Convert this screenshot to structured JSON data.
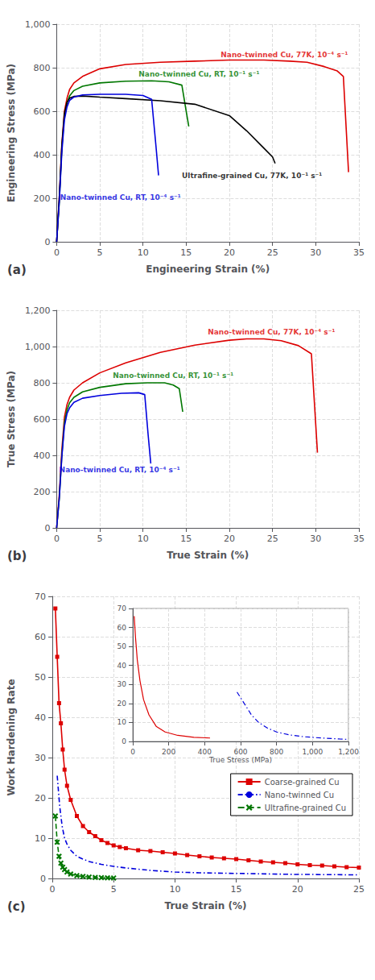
{
  "chart_data": [
    {
      "type": "line",
      "title": "(a)",
      "xlabel": "Engineering Strain (%)",
      "ylabel": "Engineering Stress (MPa)",
      "xlim": [
        0,
        35
      ],
      "ylim": [
        0,
        1000
      ],
      "xticks": [
        0,
        5,
        10,
        15,
        20,
        25,
        30,
        35
      ],
      "yticks": [
        0,
        200,
        400,
        600,
        800,
        1000
      ],
      "grid": true,
      "series": [
        {
          "color": "#dd0000",
          "line_style": "solid",
          "x": [
            0,
            0.3,
            0.6,
            0.9,
            1.2,
            1.5,
            2.0,
            3.0,
            5.0,
            8.0,
            12.0,
            16.0,
            20.0,
            24.0,
            27.0,
            29.0,
            31.0,
            32.5,
            33.2,
            33.8
          ],
          "values": [
            0,
            200,
            450,
            600,
            660,
            700,
            730,
            760,
            795,
            815,
            825,
            830,
            835,
            835,
            830,
            825,
            805,
            785,
            760,
            320
          ]
        },
        {
          "color": "#007700",
          "line_style": "solid",
          "x": [
            0,
            0.3,
            0.6,
            0.9,
            1.2,
            1.5,
            2.0,
            3.0,
            5.0,
            8.0,
            11.0,
            13.0,
            14.5,
            15.0,
            15.3
          ],
          "values": [
            0,
            180,
            430,
            580,
            640,
            670,
            695,
            715,
            730,
            738,
            740,
            735,
            720,
            600,
            530
          ]
        },
        {
          "color": "#000000",
          "line_style": "solid",
          "x": [
            0,
            0.3,
            0.6,
            0.9,
            1.2,
            1.5,
            2.0,
            3.0,
            5.0,
            8.0,
            12.0,
            16.0,
            20.0,
            22.0,
            24.0,
            25.0,
            25.3
          ],
          "values": [
            0,
            200,
            440,
            590,
            640,
            660,
            668,
            670,
            665,
            658,
            648,
            632,
            580,
            510,
            430,
            390,
            360
          ]
        },
        {
          "color": "#0000dd",
          "line_style": "solid",
          "x": [
            0,
            0.3,
            0.6,
            0.9,
            1.2,
            1.5,
            2.0,
            3.0,
            5.0,
            8.0,
            10.0,
            11.0,
            11.5,
            11.8
          ],
          "values": [
            0,
            180,
            410,
            560,
            620,
            650,
            665,
            675,
            678,
            678,
            672,
            655,
            440,
            305
          ]
        }
      ],
      "annotations": [
        {
          "x": 19.0,
          "y": 843,
          "text": "Nano-twinned Cu, 77K, 10⁻⁴ s⁻¹",
          "color": "#dd0000"
        },
        {
          "x": 9.5,
          "y": 752,
          "text": "Nano-twinned Cu, RT, 10⁻¹ s⁻¹",
          "color": "#007700"
        },
        {
          "x": 14.5,
          "y": 288,
          "text": "Ultrafine-grained Cu, 77K, 10⁻¹ s⁻¹",
          "color": "#000000"
        },
        {
          "x": 0.4,
          "y": 188,
          "text": "Nano-twinned Cu, RT, 10⁻⁴ s⁻¹",
          "color": "#0000dd"
        }
      ]
    },
    {
      "type": "line",
      "title": "(b)",
      "xlabel": "True Strain (%)",
      "ylabel": "True Stress (MPa)",
      "xlim": [
        0,
        35
      ],
      "ylim": [
        0,
        1200
      ],
      "xticks": [
        0,
        5,
        10,
        15,
        20,
        25,
        30,
        35
      ],
      "yticks": [
        0,
        200,
        400,
        600,
        800,
        1000,
        1200
      ],
      "grid": true,
      "series": [
        {
          "color": "#dd0000",
          "line_style": "solid",
          "x": [
            0,
            0.3,
            0.6,
            0.9,
            1.2,
            1.5,
            2.0,
            3.0,
            5.0,
            8.0,
            12.0,
            16.0,
            20.0,
            22.0,
            24.0,
            26.0,
            28.0,
            29.5,
            30.2
          ],
          "values": [
            0,
            180,
            430,
            610,
            680,
            720,
            760,
            800,
            855,
            910,
            968,
            1008,
            1035,
            1042,
            1042,
            1032,
            1005,
            960,
            415
          ]
        },
        {
          "color": "#007700",
          "line_style": "solid",
          "x": [
            0,
            0.3,
            0.6,
            0.9,
            1.2,
            1.5,
            2.0,
            3.0,
            5.0,
            8.0,
            10.5,
            12.5,
            13.5,
            14.2,
            14.6
          ],
          "values": [
            0,
            160,
            400,
            580,
            650,
            690,
            720,
            750,
            775,
            795,
            800,
            800,
            788,
            768,
            640
          ]
        },
        {
          "color": "#0000dd",
          "line_style": "solid",
          "x": [
            0,
            0.3,
            0.6,
            0.9,
            1.2,
            1.5,
            2.0,
            3.0,
            5.0,
            7.5,
            9.5,
            10.2,
            10.6,
            10.9
          ],
          "values": [
            0,
            160,
            390,
            560,
            630,
            662,
            692,
            715,
            730,
            742,
            745,
            735,
            510,
            355
          ]
        }
      ],
      "annotations": [
        {
          "x": 17.5,
          "y": 1062,
          "text": "Nano-twinned Cu, 77K, 10⁻⁴ s⁻¹",
          "color": "#dd0000"
        },
        {
          "x": 6.5,
          "y": 822,
          "text": "Nano-twinned Cu, RT, 10⁻¹ s⁻¹",
          "color": "#007700"
        },
        {
          "x": 0.3,
          "y": 298,
          "text": "Nano-twinned Cu, RT, 10⁻⁴ s⁻¹",
          "color": "#0000dd"
        }
      ]
    },
    {
      "type": "line",
      "title": "(c)",
      "xlabel": "True Strain (%)",
      "ylabel": "Work Hardening Rate",
      "xlim": [
        0,
        25
      ],
      "ylim": [
        0,
        70
      ],
      "xticks": [
        0,
        5,
        10,
        15,
        20,
        25
      ],
      "yticks": [
        0,
        10,
        20,
        30,
        40,
        50,
        60,
        70
      ],
      "grid": true,
      "legend": "lower right",
      "series": [
        {
          "name": "Coarse-grained Cu",
          "color": "#dd0000",
          "line_style": "solid",
          "marker": "square",
          "x": [
            0.25,
            0.4,
            0.55,
            0.7,
            0.85,
            1.0,
            1.2,
            1.5,
            2.0,
            2.5,
            3.0,
            3.5,
            4.0,
            4.5,
            5.0,
            5.5,
            6.0,
            7.0,
            8.0,
            9.0,
            10.0,
            11.0,
            12.0,
            13.0,
            14.0,
            15.0,
            16.0,
            17.0,
            18.0,
            19.0,
            20.0,
            21.0,
            22.0,
            23.0,
            24.0,
            25.0
          ],
          "values": [
            67.0,
            55.0,
            43.5,
            38.5,
            32.0,
            27.0,
            23.0,
            19.5,
            15.5,
            13.0,
            11.5,
            10.5,
            9.5,
            8.8,
            8.2,
            7.8,
            7.5,
            7.0,
            6.8,
            6.5,
            6.2,
            5.8,
            5.5,
            5.2,
            5.0,
            4.8,
            4.5,
            4.2,
            4.0,
            3.8,
            3.5,
            3.3,
            3.2,
            3.0,
            2.8,
            2.7
          ]
        },
        {
          "name": "Nano-twinned Cu",
          "color": "#0000dd",
          "line_style": "dashdot",
          "x": [
            0.4,
            0.6,
            0.8,
            1.0,
            1.2,
            1.5,
            2.0,
            2.5,
            3.0,
            4.0,
            5.0,
            6.0,
            7.0,
            8.0,
            9.0,
            10.0,
            11.0,
            12.0,
            13.0,
            14.0,
            15.0,
            16.0,
            17.0,
            18.0,
            19.0,
            20.0,
            21.0,
            22.0,
            23.0,
            24.0,
            25.0
          ],
          "values": [
            25.5,
            18.0,
            13.0,
            10.0,
            8.5,
            7.0,
            5.5,
            4.8,
            4.2,
            3.5,
            3.0,
            2.6,
            2.3,
            2.0,
            1.8,
            1.6,
            1.5,
            1.4,
            1.35,
            1.3,
            1.25,
            1.2,
            1.15,
            1.1,
            1.05,
            1.0,
            1.0,
            0.95,
            0.95,
            0.9,
            0.9
          ]
        },
        {
          "name": "Ultrafine-grained Cu",
          "color": "#007700",
          "line_style": "dashed",
          "marker": "x",
          "x": [
            0.25,
            0.4,
            0.55,
            0.7,
            0.85,
            1.0,
            1.2,
            1.5,
            2.0,
            2.5,
            3.0,
            3.5,
            4.0,
            4.5,
            5.0
          ],
          "values": [
            15.5,
            9.0,
            5.5,
            3.8,
            2.8,
            2.2,
            1.6,
            1.1,
            0.7,
            0.5,
            0.35,
            0.25,
            0.2,
            0.15,
            0.12
          ]
        }
      ]
    },
    {
      "type": "line",
      "xlabel": "True Stress (MPa)",
      "xlim": [
        0,
        1200
      ],
      "ylim": [
        0,
        70
      ],
      "xticks": [
        0,
        200,
        400,
        600,
        800,
        1000,
        1200
      ],
      "yticks": [
        0,
        10,
        20,
        30,
        40,
        50,
        60,
        70
      ],
      "grid": true,
      "series": [
        {
          "color": "#dd0000",
          "line_style": "solid",
          "x": [
            8,
            15,
            25,
            40,
            60,
            90,
            130,
            180,
            250,
            340,
            430
          ],
          "values": [
            66,
            55,
            43,
            32,
            22,
            14,
            8,
            5,
            3.2,
            2.2,
            1.8
          ]
        },
        {
          "color": "#0000dd",
          "line_style": "dashdot",
          "x": [
            580,
            620,
            660,
            700,
            750,
            800,
            870,
            950,
            1050,
            1150,
            1200
          ],
          "values": [
            26,
            20,
            14,
            10,
            7,
            5,
            3.5,
            2.5,
            1.8,
            1.3,
            1.1
          ]
        }
      ]
    }
  ]
}
